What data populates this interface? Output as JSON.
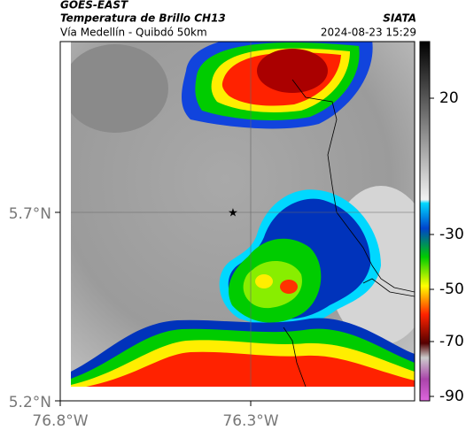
{
  "header": {
    "source": "GOES-EAST",
    "title": "Temperatura de Brillo CH13",
    "subtitle": "Vía Medellín - Quibdó 50km",
    "agency": "SIATA",
    "timestamp": "2024-08-23 15:29"
  },
  "axes": {
    "lat_labels": [
      "5.7°N",
      "5.2°N"
    ],
    "lon_labels": [
      "76.8°W",
      "76.3°W"
    ]
  },
  "colorbar": {
    "labels": [
      "20",
      "-30",
      "-50",
      "-70",
      "-90"
    ]
  }
}
